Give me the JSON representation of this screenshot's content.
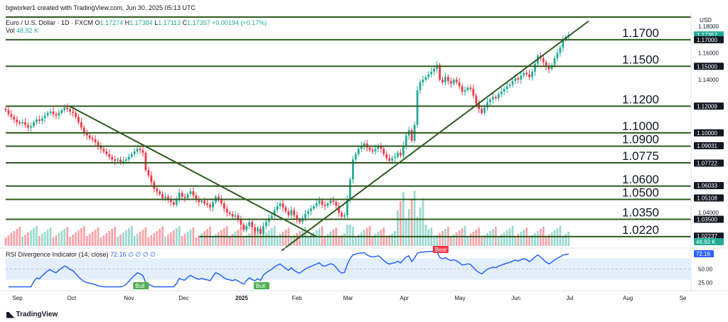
{
  "header": {
    "credit": "bgworker1 created with TradingView.com, Jun 30, 2025 05:13 UTC",
    "symbol": "Euro / U.S. Dollar · 1D · FXCM",
    "ohlc": {
      "o_label": "O",
      "o": "1.17274",
      "h_label": "H",
      "h": "1.17384",
      "l_label": "L",
      "l": "1.17113",
      "c_label": "C",
      "c": "1.17357",
      "change": "+0.00194 (+0.17%)"
    },
    "vol_label": "Vol",
    "vol_value": "48.92 K"
  },
  "branding": {
    "logo_text": "TradingView",
    "logo_icon": "tradingview-logo-icon"
  },
  "colors": {
    "up": "#22ab94",
    "down": "#f23645",
    "line": "#2f5a1f",
    "rsi": "#2962ff",
    "rsi_band": "#e3effd",
    "price_tag": "#131722",
    "rsi_tag": "#2962ff"
  },
  "chart_data": [
    {
      "type": "candlestick",
      "title": "Euro / U.S. Dollar",
      "currency_label": "USD",
      "ylim": [
        1.015,
        1.187
      ],
      "x": [
        "2024-08-26",
        "2025-06-30"
      ],
      "xticks": [
        "Sep",
        "Oct",
        "Nov",
        "Dec",
        "2025",
        "Feb",
        "Mar",
        "Apr",
        "May",
        "Jun",
        "Jul",
        "Aug",
        "Se"
      ],
      "yticks": [
        "1.18000",
        "1.16000",
        "1.14000",
        "1.04000"
      ],
      "price_tags": [
        {
          "value": 1.17357,
          "label": "1.17357",
          "kind": "last"
        },
        {
          "value": 1.17,
          "label": "1.17000",
          "kind": "level"
        },
        {
          "value": 1.15,
          "label": "1.15000",
          "kind": "level"
        },
        {
          "value": 1.12009,
          "label": "1.12009",
          "kind": "level"
        },
        {
          "value": 1.1,
          "label": "1.10000",
          "kind": "level"
        },
        {
          "value": 1.09031,
          "label": "1.09031",
          "kind": "level"
        },
        {
          "value": 1.07722,
          "label": "1.07722",
          "kind": "level"
        },
        {
          "value": 1.06033,
          "label": "1.06033",
          "kind": "level"
        },
        {
          "value": 1.05108,
          "label": "1.05108",
          "kind": "level"
        },
        {
          "value": 1.035,
          "label": "1.03500",
          "kind": "level"
        },
        {
          "value": 1.02237,
          "label": "1.02237",
          "kind": "level"
        }
      ],
      "horizontal_levels": [
        {
          "value": 1.187,
          "label": ""
        },
        {
          "value": 1.17,
          "label": "1.1700"
        },
        {
          "value": 1.15,
          "label": "1.1500"
        },
        {
          "value": 1.12,
          "label": "1.1200"
        },
        {
          "value": 1.1,
          "label": "1.1000"
        },
        {
          "value": 1.09,
          "label": "1.0900"
        },
        {
          "value": 1.0775,
          "label": "1.0775"
        },
        {
          "value": 1.06,
          "label": "1.0600"
        },
        {
          "value": 1.05,
          "label": "1.0500"
        },
        {
          "value": 1.035,
          "label": "1.0350"
        },
        {
          "value": 1.022,
          "label": "1.0220",
          "start": "2024-12-10"
        }
      ],
      "trendlines": [
        {
          "from": [
            "2024-09-30",
            1.12
          ],
          "to": [
            "2025-02-12",
            1.022
          ]
        },
        {
          "from": [
            "2025-01-24",
            1.0115
          ],
          "to": [
            "2025-07-11",
            1.184
          ]
        }
      ],
      "closes": [
        1.117,
        1.114,
        1.112,
        1.11,
        1.108,
        1.107,
        1.108,
        1.106,
        1.104,
        1.105,
        1.108,
        1.11,
        1.109,
        1.111,
        1.113,
        1.115,
        1.116,
        1.114,
        1.113,
        1.115,
        1.117,
        1.119,
        1.118,
        1.116,
        1.115,
        1.112,
        1.108,
        1.104,
        1.1,
        1.098,
        1.096,
        1.095,
        1.093,
        1.09,
        1.088,
        1.086,
        1.084,
        1.082,
        1.08,
        1.079,
        1.08,
        1.078,
        1.079,
        1.08,
        1.082,
        1.084,
        1.086,
        1.088,
        1.087,
        1.085,
        1.072,
        1.068,
        1.063,
        1.058,
        1.056,
        1.054,
        1.051,
        1.052,
        1.05,
        1.048,
        1.046,
        1.05,
        1.055,
        1.052,
        1.051,
        1.054,
        1.056,
        1.053,
        1.05,
        1.048,
        1.049,
        1.047,
        1.046,
        1.044,
        1.048,
        1.052,
        1.05,
        1.047,
        1.043,
        1.04,
        1.039,
        1.037,
        1.038,
        1.035,
        1.031,
        1.027,
        1.03,
        1.033,
        1.029,
        1.026,
        1.028,
        1.024,
        1.03,
        1.033,
        1.036,
        1.038,
        1.042,
        1.045,
        1.047,
        1.044,
        1.041,
        1.038,
        1.042,
        1.038,
        1.035,
        1.033,
        1.036,
        1.039,
        1.041,
        1.043,
        1.045,
        1.047,
        1.049,
        1.046,
        1.045,
        1.047,
        1.049,
        1.048,
        1.045,
        1.04,
        1.037,
        1.038,
        1.05,
        1.065,
        1.08,
        1.084,
        1.088,
        1.09,
        1.092,
        1.089,
        1.087,
        1.086,
        1.088,
        1.09,
        1.088,
        1.084,
        1.081,
        1.079,
        1.081,
        1.082,
        1.085,
        1.083,
        1.09,
        1.098,
        1.102,
        1.094,
        1.106,
        1.132,
        1.138,
        1.14,
        1.142,
        1.144,
        1.146,
        1.148,
        1.151,
        1.14,
        1.138,
        1.142,
        1.139,
        1.137,
        1.14,
        1.138,
        1.135,
        1.131,
        1.132,
        1.134,
        1.133,
        1.128,
        1.122,
        1.118,
        1.115,
        1.119,
        1.123,
        1.125,
        1.127,
        1.126,
        1.129,
        1.131,
        1.133,
        1.135,
        1.136,
        1.139,
        1.141,
        1.14,
        1.143,
        1.145,
        1.144,
        1.142,
        1.146,
        1.152,
        1.158,
        1.156,
        1.153,
        1.15,
        1.148,
        1.151,
        1.156,
        1.16,
        1.164,
        1.17,
        1.172,
        1.1736
      ],
      "volume_label": "48.92 K"
    },
    {
      "type": "line",
      "title": "RSI Divergence Indicator",
      "params": "(14, close)",
      "value_label": "72.16",
      "extra_values": "∅ ∅ ∅ ∅",
      "ylim": [
        15,
        85
      ],
      "yticks": [
        "50.00",
        "25.00"
      ],
      "band": [
        30,
        70
      ],
      "annotations": [
        {
          "label": "Bull",
          "kind": "bull",
          "date": "2024-11-08"
        },
        {
          "label": "Bull",
          "kind": "bull",
          "date": "2025-01-13"
        },
        {
          "label": "Bear",
          "kind": "bear",
          "date": "2025-04-21"
        }
      ]
    }
  ]
}
